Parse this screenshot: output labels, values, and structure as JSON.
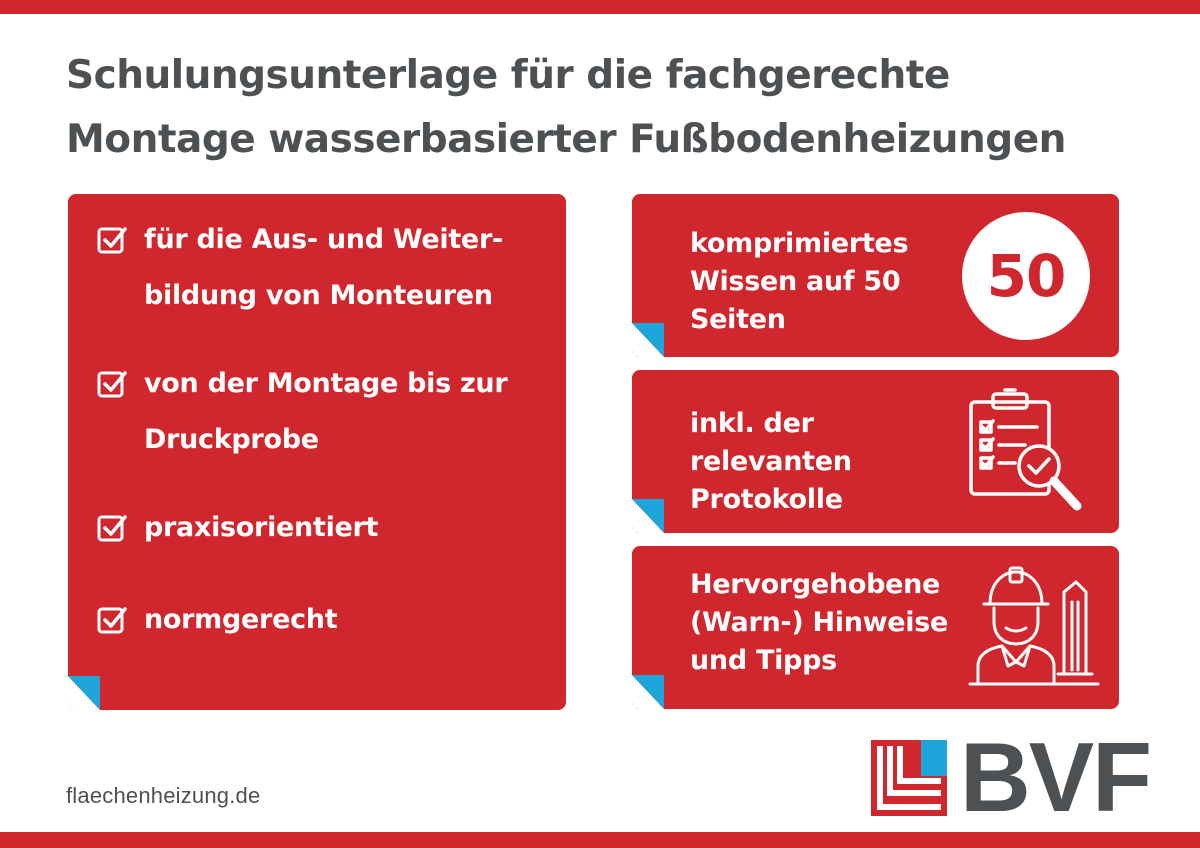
{
  "title": {
    "line1": "Schulungsunterlage für die fachgerechte",
    "line2": "Montage wasserbasierter Fußbodenheizungen"
  },
  "left_card": {
    "items": [
      {
        "line1": "für die Aus- und Weiter-",
        "line2": "bildung von Monteuren"
      },
      {
        "line1": "von der Montage bis zur",
        "line2": "Druckprobe"
      },
      {
        "line1": "praxisorientiert",
        "line2": ""
      },
      {
        "line1": "normgerecht",
        "line2": ""
      }
    ]
  },
  "right_cards": [
    {
      "lines": [
        "komprimiertes",
        "Wissen auf 50",
        "Seiten"
      ],
      "badge": "50"
    },
    {
      "lines": [
        "inkl. der",
        "relevanten",
        "Protokolle"
      ],
      "icon": "clipboard-search-icon"
    },
    {
      "lines": [
        "Hervorgehobene",
        "(Warn-) Hinweise",
        "und Tipps"
      ],
      "icon": "worker-icon"
    }
  ],
  "footer": {
    "website": "flaechenheizung.de",
    "brand": "BVF"
  },
  "colors": {
    "red": "#d0262d",
    "blue": "#1ea5dc",
    "gray": "#4d5154",
    "white": "#ffffff"
  }
}
